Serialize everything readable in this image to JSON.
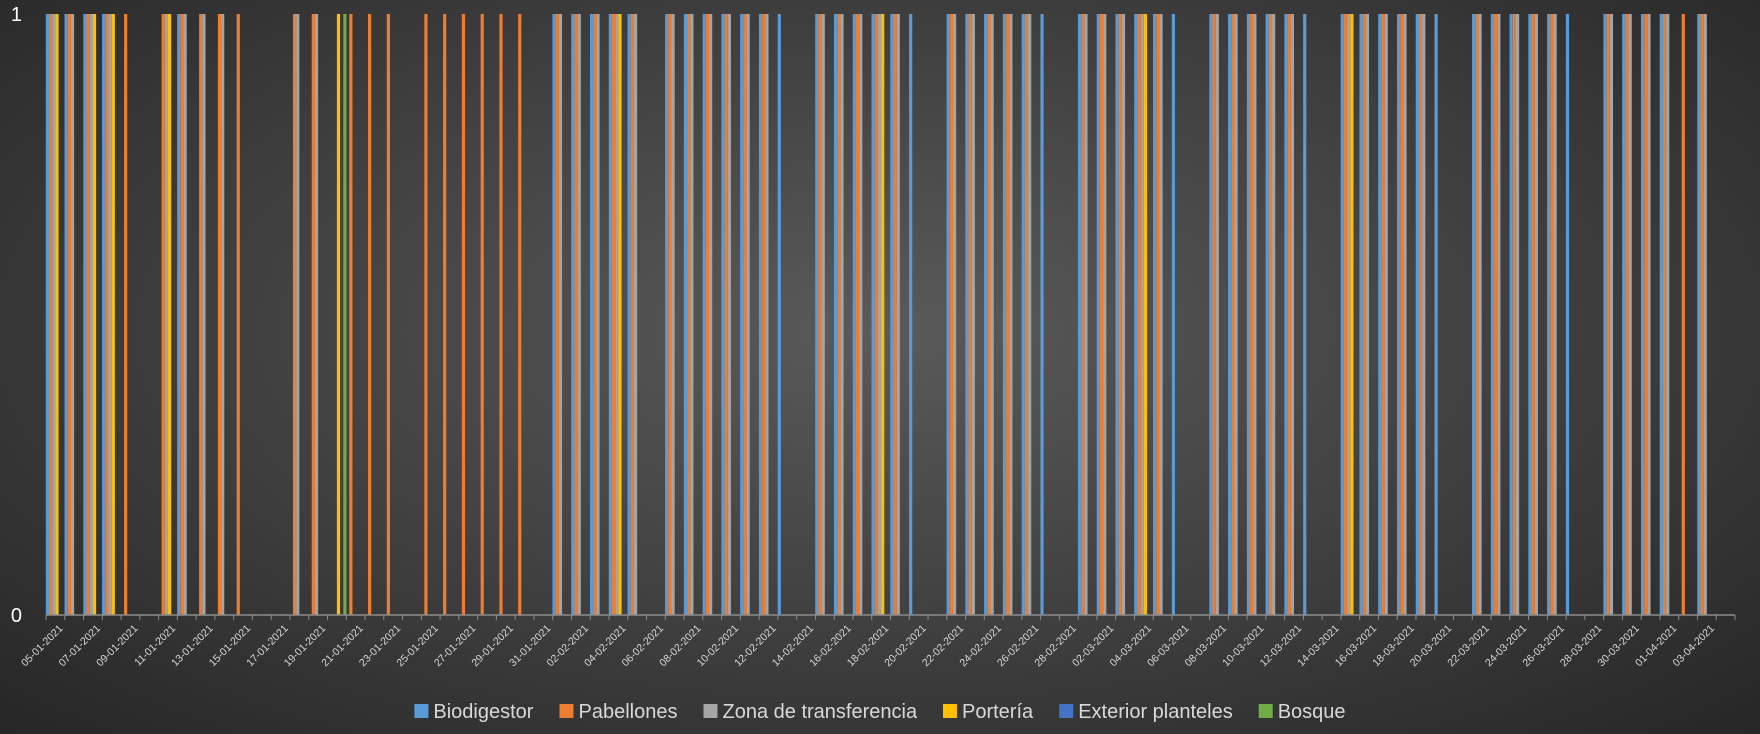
{
  "chart_data": {
    "type": "bar",
    "title": "",
    "xlabel": "",
    "ylabel": "",
    "ylim": [
      0,
      1
    ],
    "y_ticks": [
      "0",
      "1"
    ],
    "grid": false,
    "legend_position": "bottom",
    "x_range": [
      "05-01-2021",
      "04-04-2021"
    ],
    "x_tick_labels": [
      "05-01-2021",
      "07-01-2021",
      "09-01-2021",
      "11-01-2021",
      "13-01-2021",
      "15-01-2021",
      "17-01-2021",
      "19-01-2021",
      "21-01-2021",
      "23-01-2021",
      "25-01-2021",
      "27-01-2021",
      "29-01-2021",
      "31-01-2021",
      "02-02-2021",
      "04-02-2021",
      "06-02-2021",
      "08-02-2021",
      "10-02-2021",
      "12-02-2021",
      "14-02-2021",
      "16-02-2021",
      "18-02-2021",
      "20-02-2021",
      "22-02-2021",
      "24-02-2021",
      "26-02-2021",
      "28-02-2021",
      "02-03-2021",
      "04-03-2021",
      "06-03-2021",
      "08-03-2021",
      "10-03-2021",
      "12-03-2021",
      "14-03-2021",
      "16-03-2021",
      "18-03-2021",
      "20-03-2021",
      "22-03-2021",
      "24-03-2021",
      "26-03-2021",
      "28-03-2021",
      "30-03-2021",
      "01-04-2021",
      "03-04-2021"
    ],
    "series": [
      {
        "name": "Biodigestor",
        "color": "#5b9bd5",
        "dates": [
          "05-01-2021",
          "06-01-2021",
          "07-01-2021",
          "08-01-2021",
          "12-01-2021",
          "01-02-2021",
          "02-02-2021",
          "03-02-2021",
          "04-02-2021",
          "05-02-2021",
          "07-02-2021",
          "08-02-2021",
          "09-02-2021",
          "10-02-2021",
          "11-02-2021",
          "12-02-2021",
          "13-02-2021",
          "15-02-2021",
          "16-02-2021",
          "17-02-2021",
          "18-02-2021",
          "19-02-2021",
          "20-02-2021",
          "22-02-2021",
          "23-02-2021",
          "24-02-2021",
          "25-02-2021",
          "26-02-2021",
          "27-02-2021",
          "01-03-2021",
          "02-03-2021",
          "03-03-2021",
          "04-03-2021",
          "05-03-2021",
          "06-03-2021",
          "08-03-2021",
          "09-03-2021",
          "10-03-2021",
          "11-03-2021",
          "12-03-2021",
          "13-03-2021",
          "15-03-2021",
          "16-03-2021",
          "17-03-2021",
          "18-03-2021",
          "19-03-2021",
          "20-03-2021",
          "22-03-2021",
          "23-03-2021",
          "24-03-2021",
          "25-03-2021",
          "26-03-2021",
          "27-03-2021",
          "29-03-2021",
          "30-03-2021",
          "31-03-2021",
          "01-04-2021",
          "03-04-2021"
        ]
      },
      {
        "name": "Pabellones",
        "color": "#ed7d31",
        "dates": [
          "05-01-2021",
          "06-01-2021",
          "07-01-2021",
          "08-01-2021",
          "09-01-2021",
          "11-01-2021",
          "12-01-2021",
          "13-01-2021",
          "14-01-2021",
          "15-01-2021",
          "18-01-2021",
          "19-01-2021",
          "21-01-2021",
          "22-01-2021",
          "23-01-2021",
          "25-01-2021",
          "26-01-2021",
          "27-01-2021",
          "28-01-2021",
          "29-01-2021",
          "30-01-2021",
          "01-02-2021",
          "02-02-2021",
          "03-02-2021",
          "04-02-2021",
          "05-02-2021",
          "07-02-2021",
          "08-02-2021",
          "09-02-2021",
          "10-02-2021",
          "11-02-2021",
          "12-02-2021",
          "15-02-2021",
          "16-02-2021",
          "17-02-2021",
          "18-02-2021",
          "19-02-2021",
          "22-02-2021",
          "23-02-2021",
          "24-02-2021",
          "25-02-2021",
          "26-02-2021",
          "01-03-2021",
          "02-03-2021",
          "03-03-2021",
          "04-03-2021",
          "05-03-2021",
          "08-03-2021",
          "09-03-2021",
          "10-03-2021",
          "11-03-2021",
          "12-03-2021",
          "15-03-2021",
          "16-03-2021",
          "17-03-2021",
          "18-03-2021",
          "19-03-2021",
          "22-03-2021",
          "23-03-2021",
          "24-03-2021",
          "25-03-2021",
          "26-03-2021",
          "29-03-2021",
          "30-03-2021",
          "31-03-2021",
          "01-04-2021",
          "02-04-2021",
          "03-04-2021"
        ]
      },
      {
        "name": "Zona de transferencia",
        "color": "#a5a5a5",
        "dates": [
          "05-01-2021",
          "06-01-2021",
          "07-01-2021",
          "08-01-2021",
          "11-01-2021",
          "12-01-2021",
          "13-01-2021",
          "14-01-2021",
          "18-01-2021",
          "19-01-2021",
          "01-02-2021",
          "02-02-2021",
          "03-02-2021",
          "04-02-2021",
          "05-02-2021",
          "07-02-2021",
          "08-02-2021",
          "09-02-2021",
          "10-02-2021",
          "11-02-2021",
          "12-02-2021",
          "15-02-2021",
          "16-02-2021",
          "17-02-2021",
          "18-02-2021",
          "19-02-2021",
          "22-02-2021",
          "23-02-2021",
          "24-02-2021",
          "25-02-2021",
          "26-02-2021",
          "01-03-2021",
          "02-03-2021",
          "03-03-2021",
          "04-03-2021",
          "05-03-2021",
          "08-03-2021",
          "09-03-2021",
          "10-03-2021",
          "11-03-2021",
          "12-03-2021",
          "15-03-2021",
          "16-03-2021",
          "17-03-2021",
          "18-03-2021",
          "19-03-2021",
          "22-03-2021",
          "23-03-2021",
          "24-03-2021",
          "25-03-2021",
          "26-03-2021",
          "29-03-2021",
          "30-03-2021",
          "31-03-2021",
          "01-04-2021",
          "03-04-2021"
        ]
      },
      {
        "name": "Portería",
        "color": "#ffc000",
        "dates": [
          "05-01-2021",
          "07-01-2021",
          "08-01-2021",
          "11-01-2021",
          "20-01-2021",
          "04-02-2021",
          "18-02-2021",
          "04-03-2021",
          "15-03-2021"
        ]
      },
      {
        "name": "Exterior planteles",
        "color": "#4472c4",
        "dates": []
      },
      {
        "name": "Bosque",
        "color": "#70ad47",
        "dates": [
          "20-01-2021"
        ]
      }
    ]
  }
}
